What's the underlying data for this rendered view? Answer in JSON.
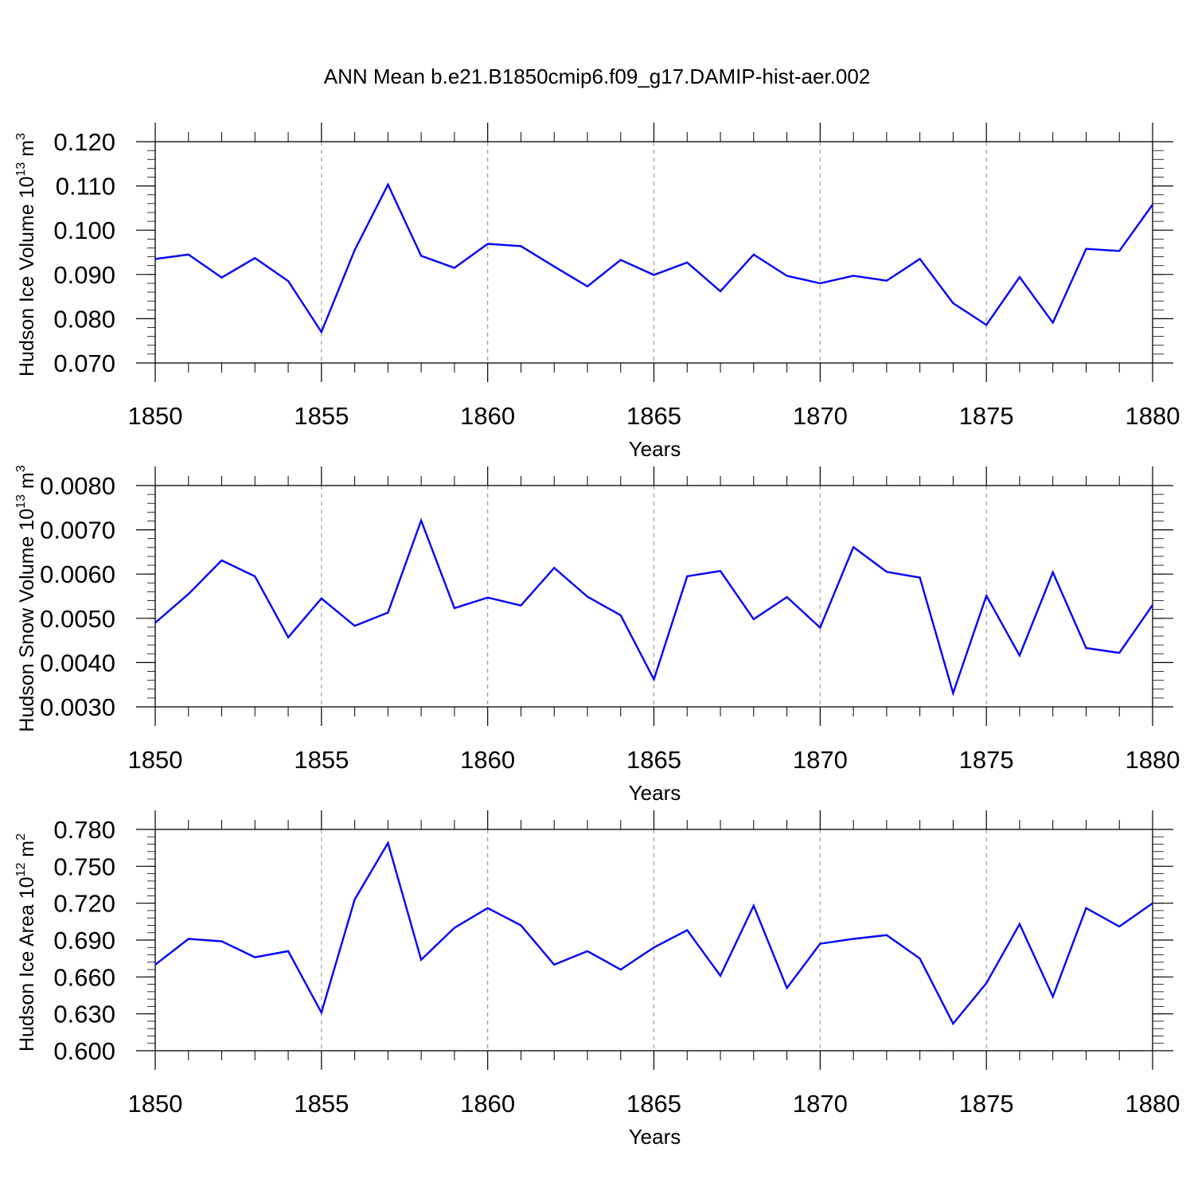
{
  "title": "ANN Mean b.e21.B1850cmip6.f09_g17.DAMIP-hist-aer.002",
  "colors": {
    "line": "#0000ff",
    "axis": "#000000",
    "grid": "#9a9a9a"
  },
  "chart_data": [
    {
      "type": "line",
      "xlabel": "Years",
      "ylabel": {
        "text": "Hudson Ice Volume 10",
        "exp": "13",
        "unit": " m",
        "unit_exp": "3"
      },
      "xlim": [
        1850,
        1880
      ],
      "ylim": [
        0.07,
        0.12
      ],
      "x_ticks": [
        1850,
        1855,
        1860,
        1865,
        1870,
        1875,
        1880
      ],
      "x_tick_labels": [
        "1850",
        "1855",
        "1860",
        "1865",
        "1870",
        "1875",
        "1880"
      ],
      "y_ticks": [
        0.07,
        0.08,
        0.09,
        0.1,
        0.11,
        0.12
      ],
      "y_tick_labels": [
        "0.070",
        "0.080",
        "0.090",
        "0.100",
        "0.110",
        "0.120"
      ],
      "y_minor_step": 0.002,
      "grid": "x-dashed",
      "series": [
        {
          "x": [
            1850,
            1851,
            1852,
            1853,
            1854,
            1855,
            1856,
            1857,
            1858,
            1859,
            1860,
            1861,
            1862,
            1863,
            1864,
            1865,
            1866,
            1867,
            1868,
            1869,
            1870,
            1871,
            1872,
            1873,
            1874,
            1875,
            1876,
            1877,
            1878,
            1879,
            1880
          ],
          "values": [
            0.0935,
            0.0945,
            0.0893,
            0.0937,
            0.0885,
            0.077,
            0.0955,
            0.1103,
            0.0942,
            0.0915,
            0.0969,
            0.0964,
            0.0918,
            0.0873,
            0.0933,
            0.0899,
            0.0927,
            0.0862,
            0.0945,
            0.0897,
            0.088,
            0.0897,
            0.0886,
            0.0935,
            0.0835,
            0.0786,
            0.0894,
            0.0791,
            0.0958,
            0.0953,
            0.1058
          ]
        }
      ]
    },
    {
      "type": "line",
      "xlabel": "Years",
      "ylabel": {
        "text": "Hudson Snow Volume 10",
        "exp": "13",
        "unit": " m",
        "unit_exp": "3"
      },
      "xlim": [
        1850,
        1880
      ],
      "ylim": [
        0.003,
        0.008
      ],
      "x_ticks": [
        1850,
        1855,
        1860,
        1865,
        1870,
        1875,
        1880
      ],
      "x_tick_labels": [
        "1850",
        "1855",
        "1860",
        "1865",
        "1870",
        "1875",
        "1880"
      ],
      "y_ticks": [
        0.003,
        0.004,
        0.005,
        0.006,
        0.007,
        0.008
      ],
      "y_tick_labels": [
        "0.0030",
        "0.0040",
        "0.0050",
        "0.0060",
        "0.0070",
        "0.0080"
      ],
      "y_minor_step": 0.0002,
      "grid": "x-dashed",
      "series": [
        {
          "x": [
            1850,
            1851,
            1852,
            1853,
            1854,
            1855,
            1856,
            1857,
            1858,
            1859,
            1860,
            1861,
            1862,
            1863,
            1864,
            1865,
            1866,
            1867,
            1868,
            1869,
            1870,
            1871,
            1872,
            1873,
            1874,
            1875,
            1876,
            1877,
            1878,
            1879,
            1880
          ],
          "values": [
            0.0049,
            0.00555,
            0.00631,
            0.00595,
            0.00457,
            0.00545,
            0.00483,
            0.00513,
            0.00721,
            0.00523,
            0.00547,
            0.00529,
            0.00614,
            0.00549,
            0.00507,
            0.00362,
            0.00595,
            0.00607,
            0.00498,
            0.00548,
            0.00479,
            0.00661,
            0.00605,
            0.00592,
            0.00331,
            0.00551,
            0.00416,
            0.00604,
            0.00433,
            0.00422,
            0.0053
          ]
        }
      ]
    },
    {
      "type": "line",
      "xlabel": "Years",
      "ylabel": {
        "text": "Hudson Ice Area 10",
        "exp": "12",
        "unit": " m",
        "unit_exp": "2"
      },
      "xlim": [
        1850,
        1880
      ],
      "ylim": [
        0.6,
        0.78
      ],
      "x_ticks": [
        1850,
        1855,
        1860,
        1865,
        1870,
        1875,
        1880
      ],
      "x_tick_labels": [
        "1850",
        "1855",
        "1860",
        "1865",
        "1870",
        "1875",
        "1880"
      ],
      "y_ticks": [
        0.6,
        0.63,
        0.66,
        0.69,
        0.72,
        0.75,
        0.78
      ],
      "y_tick_labels": [
        "0.600",
        "0.630",
        "0.660",
        "0.690",
        "0.720",
        "0.750",
        "0.780"
      ],
      "y_minor_step": 0.006,
      "grid": "x-dashed",
      "series": [
        {
          "x": [
            1850,
            1851,
            1852,
            1853,
            1854,
            1855,
            1856,
            1857,
            1858,
            1859,
            1860,
            1861,
            1862,
            1863,
            1864,
            1865,
            1866,
            1867,
            1868,
            1869,
            1870,
            1871,
            1872,
            1873,
            1874,
            1875,
            1876,
            1877,
            1878,
            1879,
            1880
          ],
          "values": [
            0.67,
            0.691,
            0.689,
            0.676,
            0.681,
            0.631,
            0.723,
            0.769,
            0.674,
            0.7,
            0.716,
            0.702,
            0.67,
            0.681,
            0.666,
            0.684,
            0.698,
            0.661,
            0.718,
            0.651,
            0.687,
            0.691,
            0.694,
            0.675,
            0.622,
            0.655,
            0.703,
            0.644,
            0.716,
            0.701,
            0.72
          ]
        }
      ]
    }
  ]
}
